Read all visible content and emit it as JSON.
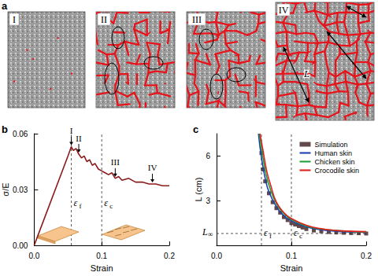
{
  "image_panel": {
    "label": "a",
    "frames": [
      "I",
      "II",
      "III",
      "IV"
    ],
    "annotation": "L"
  },
  "chart_data": [
    {
      "type": "line",
      "title": "b",
      "xlabel": "Strain",
      "ylabel": "σ/E",
      "color": "#8b1a1a",
      "x": [
        0,
        0.05,
        0.055,
        0.058,
        0.062,
        0.066,
        0.07,
        0.074,
        0.078,
        0.082,
        0.086,
        0.09,
        0.095,
        0.1,
        0.105,
        0.11,
        0.115,
        0.12,
        0.125,
        0.13,
        0.14,
        0.15,
        0.16,
        0.17,
        0.18,
        0.19,
        0.2
      ],
      "values": [
        0,
        0.048,
        0.053,
        0.051,
        0.052,
        0.049,
        0.047,
        0.048,
        0.045,
        0.046,
        0.043,
        0.044,
        0.041,
        0.04,
        0.039,
        0.038,
        0.039,
        0.036,
        0.037,
        0.035,
        0.036,
        0.034,
        0.034,
        0.033,
        0.033,
        0.032,
        0.032
      ],
      "xlim": [
        0,
        0.2
      ],
      "xticks": [
        {
          "value": 0,
          "label": "0.0"
        },
        {
          "value": 0.1,
          "label": "0.1"
        },
        {
          "value": 0.2,
          "label": "0.2"
        }
      ],
      "ylim": [
        0,
        0.06
      ],
      "yticks": [
        {
          "value": 0,
          "label": "0.00"
        },
        {
          "value": 0.03,
          "label": "0.03"
        },
        {
          "value": 0.06,
          "label": "0.06"
        }
      ],
      "grid": false,
      "annotations": [
        {
          "text": "I",
          "x": 0.055,
          "y": 0.053
        },
        {
          "text": "II",
          "x": 0.066,
          "y": 0.049
        },
        {
          "text": "III",
          "x": 0.12,
          "y": 0.036
        },
        {
          "text": "IV",
          "x": 0.175,
          "y": 0.033
        }
      ],
      "reference_lines": [
        {
          "text": "εf",
          "x": 0.055
        },
        {
          "text": "εc",
          "x": 0.1
        }
      ]
    },
    {
      "type": "line",
      "title": "c",
      "xlabel": "Strain",
      "ylabel": "L (cm)",
      "series": [
        {
          "name": "Simulation",
          "type": "scatter",
          "marker": "square",
          "color": "#3b1c1c",
          "x": [
            0.06,
            0.062,
            0.065,
            0.07,
            0.075,
            0.08,
            0.085,
            0.09,
            0.095,
            0.1,
            0.105,
            0.11,
            0.115,
            0.12,
            0.13,
            0.14,
            0.15,
            0.16,
            0.17,
            0.18,
            0.19,
            0.2
          ],
          "values": [
            6.2,
            5.1,
            4.3,
            3.5,
            2.9,
            2.5,
            2.2,
            1.9,
            1.7,
            1.5,
            1.4,
            1.3,
            1.2,
            1.1,
            1.0,
            0.95,
            0.9,
            0.87,
            0.85,
            0.83,
            0.82,
            0.8
          ]
        },
        {
          "name": "Human skin",
          "type": "line",
          "color": "#1f3fb0",
          "x": [
            0.056,
            0.06,
            0.065,
            0.07,
            0.08,
            0.09,
            0.1,
            0.12,
            0.14,
            0.16,
            0.18,
            0.2
          ],
          "values": [
            7.5,
            5.9,
            4.5,
            3.6,
            2.6,
            2.0,
            1.65,
            1.25,
            1.05,
            0.95,
            0.9,
            0.87
          ]
        },
        {
          "name": "Chicken skin",
          "type": "line",
          "color": "#1f9e3a",
          "x": [
            0.057,
            0.061,
            0.066,
            0.071,
            0.08,
            0.09,
            0.1,
            0.12,
            0.14,
            0.16,
            0.18,
            0.2
          ],
          "values": [
            7.5,
            6.2,
            4.8,
            3.9,
            2.8,
            2.15,
            1.75,
            1.3,
            1.1,
            1.0,
            0.93,
            0.9
          ]
        },
        {
          "name": "Crocodile skin",
          "type": "line",
          "color": "#e0201c",
          "x": [
            0.058,
            0.062,
            0.067,
            0.072,
            0.08,
            0.09,
            0.1,
            0.12,
            0.14,
            0.16,
            0.18,
            0.2
          ],
          "values": [
            7.5,
            6.4,
            5.0,
            4.1,
            2.9,
            2.2,
            1.8,
            1.35,
            1.12,
            1.0,
            0.95,
            0.92
          ]
        }
      ],
      "xlim": [
        0,
        0.2
      ],
      "xticks": [
        {
          "value": 0,
          "label": "0.0"
        },
        {
          "value": 0.1,
          "label": "0.1"
        },
        {
          "value": 0.2,
          "label": "0.2"
        }
      ],
      "ylim": [
        0,
        7.5
      ],
      "yticks": [
        3,
        6
      ],
      "grid": false,
      "legend": "upper right",
      "reference_lines": [
        {
          "text": "εf",
          "x": 0.06
        },
        {
          "text": "εc",
          "x": 0.1
        },
        {
          "text": "L∞",
          "y": 0.8
        }
      ]
    }
  ]
}
